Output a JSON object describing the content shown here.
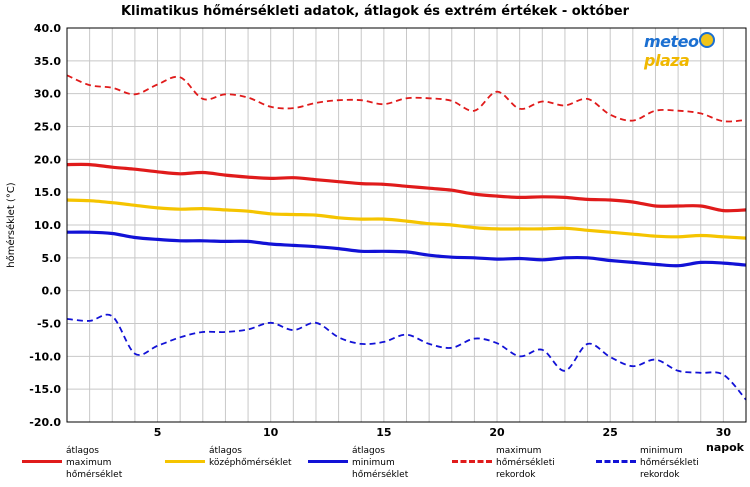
{
  "chart_data": {
    "type": "line",
    "title": "Klimatikus hőmérsékleti adatok, átlagok és extrém értékek - október",
    "ylabel": "hőmérséklet (°C)",
    "xlabel": "napok",
    "ylim": [
      -20,
      40
    ],
    "yticks": [
      "40.0",
      "35.0",
      "30.0",
      "25.0",
      "20.0",
      "15.0",
      "10.0",
      "5.0",
      "0.0",
      "-5.0",
      "-10.0",
      "-15.0",
      "-20.0"
    ],
    "xticks": [
      "5",
      "10",
      "15",
      "20",
      "25",
      "30"
    ],
    "xtick_values": [
      5,
      10,
      15,
      20,
      25,
      30
    ],
    "x": [
      1,
      2,
      3,
      4,
      5,
      6,
      7,
      8,
      9,
      10,
      11,
      12,
      13,
      14,
      15,
      16,
      17,
      18,
      19,
      20,
      21,
      22,
      23,
      24,
      25,
      26,
      27,
      28,
      29,
      30,
      31
    ],
    "grid": true,
    "series": [
      {
        "name": "átlagos maximum hőmérséklet",
        "color": "#e01b1b",
        "dash": "solid",
        "values": [
          19.2,
          19.2,
          18.8,
          18.5,
          18.1,
          17.8,
          18.0,
          17.6,
          17.3,
          17.1,
          17.2,
          16.9,
          16.6,
          16.3,
          16.2,
          15.9,
          15.6,
          15.3,
          14.7,
          14.4,
          14.2,
          14.3,
          14.2,
          13.9,
          13.8,
          13.5,
          12.9,
          12.9,
          12.9,
          12.2,
          12.3
        ]
      },
      {
        "name": "átlagos középhőmérséklet",
        "color": "#f5c400",
        "dash": "solid",
        "values": [
          13.8,
          13.7,
          13.4,
          13.0,
          12.6,
          12.4,
          12.5,
          12.3,
          12.1,
          11.7,
          11.6,
          11.5,
          11.1,
          10.9,
          10.9,
          10.6,
          10.2,
          10.0,
          9.6,
          9.4,
          9.4,
          9.4,
          9.5,
          9.2,
          8.9,
          8.6,
          8.3,
          8.2,
          8.4,
          8.2,
          8.0
        ]
      },
      {
        "name": "átlagos minimum hőmérséklet",
        "color": "#1212d6",
        "dash": "solid",
        "values": [
          8.9,
          8.9,
          8.7,
          8.1,
          7.8,
          7.6,
          7.6,
          7.5,
          7.5,
          7.1,
          6.9,
          6.7,
          6.4,
          6.0,
          6.0,
          5.9,
          5.4,
          5.1,
          5.0,
          4.8,
          4.9,
          4.7,
          5.0,
          5.0,
          4.6,
          4.3,
          4.0,
          3.8,
          4.3,
          4.2,
          3.9
        ]
      },
      {
        "name": "maximum hőmérsékleti rekordok",
        "color": "#e01b1b",
        "dash": "dashed",
        "values": [
          32.8,
          31.3,
          30.9,
          29.9,
          31.4,
          32.5,
          29.2,
          29.9,
          29.4,
          28.0,
          27.8,
          28.6,
          29.0,
          29.0,
          28.4,
          29.3,
          29.3,
          28.9,
          27.4,
          30.3,
          27.7,
          28.8,
          28.2,
          29.2,
          26.8,
          25.9,
          27.4,
          27.4,
          27.0,
          25.8,
          26.0
        ]
      },
      {
        "name": "minimum hőmérsékleti rekordok",
        "color": "#1212d6",
        "dash": "dashed",
        "values": [
          -4.3,
          -4.6,
          -3.9,
          -9.6,
          -8.4,
          -7.1,
          -6.3,
          -6.3,
          -5.9,
          -4.9,
          -6.0,
          -4.9,
          -7.1,
          -8.1,
          -7.8,
          -6.7,
          -8.1,
          -8.7,
          -7.3,
          -8.0,
          -10.0,
          -9.0,
          -12.2,
          -8.1,
          -10.1,
          -11.5,
          -10.5,
          -12.2,
          -12.5,
          -12.8,
          -16.6
        ]
      }
    ]
  },
  "legend": [
    {
      "label": "átlagos\nmaximum\nhőmérséklet",
      "color": "#e01b1b",
      "dash": "solid"
    },
    {
      "label": "átlagos\nközéphőmérséklet",
      "color": "#f5c400",
      "dash": "solid"
    },
    {
      "label": "átlagos\nminimum\nhőmérséklet",
      "color": "#1212d6",
      "dash": "solid"
    },
    {
      "label": "maximum\nhőmérsékleti\nrekordok",
      "color": "#e01b1b",
      "dash": "dashed"
    },
    {
      "label": "minimum\nhőmérsékleti\nrekordok",
      "color": "#1212d6",
      "dash": "dashed"
    }
  ],
  "logo": {
    "part1": "meteo",
    "part2": "plaza"
  }
}
